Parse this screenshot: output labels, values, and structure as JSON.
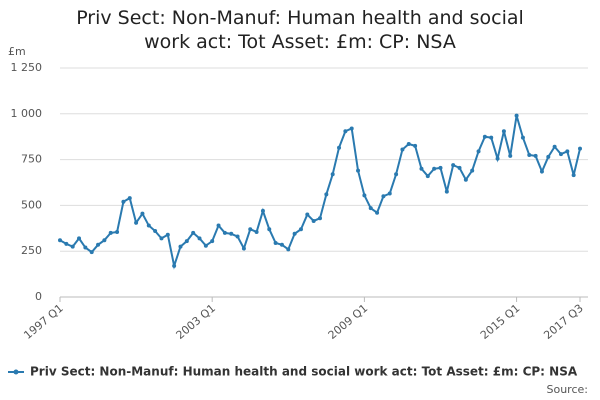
{
  "chart_data": {
    "type": "line",
    "title": "Priv Sect: Non-Manuf: Human health and social work act: Tot Asset: £m: CP: NSA",
    "y_unit": "£m",
    "source": "Source:",
    "categories": [
      "1997 Q1",
      null,
      null,
      null,
      null,
      null,
      null,
      null,
      null,
      null,
      null,
      null,
      null,
      null,
      null,
      null,
      null,
      null,
      null,
      null,
      null,
      null,
      null,
      null,
      "2003 Q1",
      null,
      null,
      null,
      null,
      null,
      null,
      null,
      null,
      null,
      null,
      null,
      null,
      null,
      null,
      null,
      null,
      null,
      null,
      null,
      null,
      null,
      null,
      null,
      "2009 Q1",
      null,
      null,
      null,
      null,
      null,
      null,
      null,
      null,
      null,
      null,
      null,
      null,
      null,
      null,
      null,
      null,
      null,
      null,
      null,
      null,
      null,
      null,
      null,
      "2015 Q1",
      null,
      null,
      null,
      null,
      null,
      null,
      null,
      null,
      null,
      "2017 Q3"
    ],
    "series": [
      {
        "name": "Priv Sect: Non-Manuf: Human health and social work act: Tot Asset: £m: CP: NSA",
        "color": "#2a7ab0",
        "values": [
          310,
          290,
          275,
          320,
          270,
          245,
          285,
          310,
          350,
          355,
          520,
          540,
          405,
          455,
          390,
          360,
          320,
          340,
          170,
          275,
          305,
          350,
          320,
          280,
          305,
          390,
          350,
          345,
          330,
          265,
          370,
          355,
          470,
          370,
          295,
          285,
          260,
          345,
          370,
          450,
          415,
          430,
          560,
          670,
          815,
          905,
          920,
          690,
          555,
          485,
          460,
          550,
          565,
          670,
          805,
          835,
          825,
          700,
          660,
          700,
          705,
          575,
          720,
          705,
          640,
          690,
          795,
          875,
          870,
          755,
          905,
          770,
          990,
          870,
          775,
          770,
          685,
          765,
          820,
          780,
          795,
          665,
          810
        ]
      }
    ],
    "ylim": [
      0,
      1250
    ],
    "yticks": [
      0,
      250,
      500,
      750,
      {
        "value": 1000,
        "label": "1 000"
      },
      {
        "value": 1250,
        "label": "1 250"
      }
    ],
    "grid": true
  }
}
